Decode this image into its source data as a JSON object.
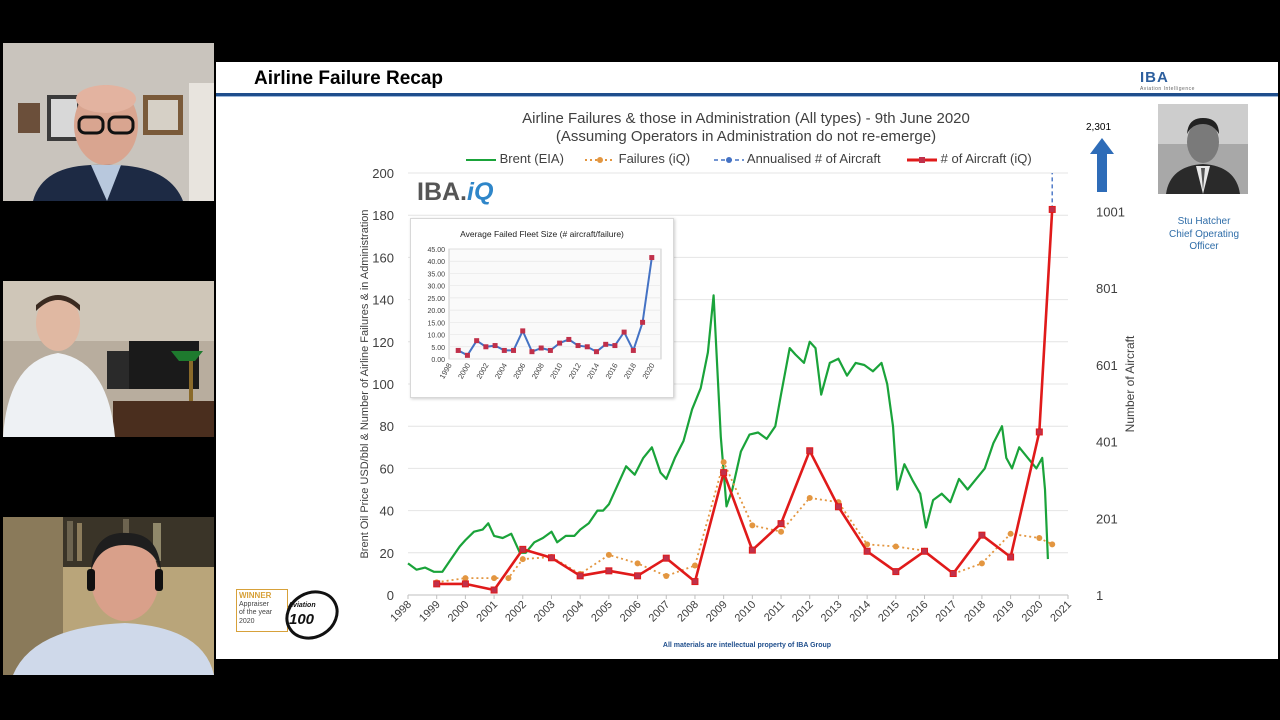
{
  "slide": {
    "title": "Airline Failure Recap",
    "logo": "IBA",
    "logo_sub": "Aviation Intelligence",
    "chart_title_line1": "Airline Failures & those in Administration (All types) - 9th June 2020",
    "chart_title_line2": "(Assuming Operators in Administration do not re-emerge)",
    "brand_mark": "IBA.",
    "brand_mark_iq": "iQ",
    "arrow_value": "2,301",
    "speaker": {
      "name": "Stu Hatcher",
      "role_line1": "Chief Operating",
      "role_line2": "Officer"
    },
    "badge": {
      "line1": "WINNER",
      "line2": "Appraiser",
      "line3": "of the year",
      "line4": "2020",
      "aviation": "Aviation",
      "hundred": "100"
    },
    "footer": "All materials are intellectual property of IBA Group"
  },
  "colors": {
    "brent": "#1aa33a",
    "failures": "#e39640",
    "annualised": "#4472c4",
    "aircraft": "#e01a1a",
    "inset_line": "#4472c4",
    "inset_marker": "#c0304a",
    "accent_blue": "#2f6da8"
  },
  "chart_data": {
    "type": "line",
    "legend": [
      "Brent (EIA)",
      "Failures (iQ)",
      "Annualised # of Aircraft",
      "# of Aircraft (iQ)"
    ],
    "ylabel_left": "Brent Oil Price USD/bbl & Number of Airline Failures & in Administration",
    "ylabel_right": "Number of Aircraft",
    "x_ticks": [
      "1998",
      "1999",
      "2000",
      "2001",
      "2002",
      "2003",
      "2004",
      "2005",
      "2006",
      "2007",
      "2008",
      "2009",
      "2010",
      "2011",
      "2012",
      "2013",
      "2014",
      "2015",
      "2016",
      "2017",
      "2018",
      "2019",
      "2020",
      "2021"
    ],
    "y_left_ticks": [
      "0",
      "20",
      "40",
      "60",
      "80",
      "100",
      "120",
      "140",
      "160",
      "180",
      "200"
    ],
    "y_right_ticks": [
      "1",
      "201",
      "401",
      "601",
      "801",
      "1001"
    ],
    "ylim_left": [
      0,
      200
    ],
    "ylim_right": [
      1,
      1101
    ],
    "xlim": [
      1998,
      2021
    ],
    "series": [
      {
        "name": "Brent (EIA)",
        "axis": "left",
        "x": [
          1998,
          1998.3,
          1998.6,
          1998.9,
          1999.2,
          1999.5,
          1999.8,
          2000.0,
          2000.3,
          2000.6,
          2000.8,
          2001.0,
          2001.3,
          2001.6,
          2001.9,
          2002.1,
          2002.4,
          2002.7,
          2003.0,
          2003.2,
          2003.5,
          2003.8,
          2004.0,
          2004.3,
          2004.6,
          2004.8,
          2005.0,
          2005.3,
          2005.6,
          2005.9,
          2006.2,
          2006.5,
          2006.8,
          2007.0,
          2007.3,
          2007.6,
          2007.9,
          2008.2,
          2008.45,
          2008.65,
          2008.9,
          2009.1,
          2009.3,
          2009.6,
          2009.9,
          2010.2,
          2010.5,
          2010.8,
          2011.0,
          2011.3,
          2011.5,
          2011.8,
          2012.0,
          2012.2,
          2012.4,
          2012.7,
          2013.0,
          2013.3,
          2013.6,
          2013.9,
          2014.2,
          2014.5,
          2014.7,
          2014.9,
          2015.05,
          2015.3,
          2015.6,
          2015.85,
          2016.05,
          2016.3,
          2016.6,
          2016.9,
          2017.2,
          2017.5,
          2017.8,
          2018.1,
          2018.4,
          2018.7,
          2018.85,
          2019.05,
          2019.3,
          2019.6,
          2019.9,
          2020.1,
          2020.2,
          2020.3
        ],
        "values": [
          15,
          12,
          13,
          11,
          11,
          17,
          23,
          26,
          30,
          31,
          34,
          28,
          27,
          29,
          20,
          20,
          25,
          27,
          30,
          25,
          28,
          28,
          31,
          34,
          40,
          40,
          43,
          52,
          61,
          57,
          65,
          70,
          58,
          55,
          65,
          73,
          88,
          98,
          115,
          142,
          75,
          42,
          50,
          68,
          76,
          77,
          74,
          80,
          95,
          117,
          114,
          110,
          120,
          117,
          95,
          110,
          112,
          104,
          110,
          109,
          106,
          110,
          100,
          80,
          50,
          62,
          54,
          48,
          32,
          45,
          48,
          44,
          55,
          50,
          55,
          60,
          72,
          80,
          65,
          60,
          70,
          65,
          60,
          65,
          50,
          17
        ]
      },
      {
        "name": "Failures (iQ)",
        "axis": "left",
        "x": [
          1999,
          2000,
          2001,
          2001.5,
          2002,
          2003,
          2004,
          2005,
          2006,
          2007,
          2008,
          2009,
          2010,
          2011,
          2012,
          2013,
          2014,
          2015,
          2016,
          2017,
          2018,
          2019,
          2020,
          2020.45
        ],
        "values": [
          6,
          8,
          8,
          8,
          17,
          18,
          10,
          19,
          15,
          9,
          14,
          63,
          33,
          30,
          46,
          44,
          24,
          23,
          21,
          10,
          15,
          29,
          27,
          24
        ]
      },
      {
        "name": "Annualised # of Aircraft",
        "axis": "right",
        "x": [
          2020.45,
          2020.45
        ],
        "values": [
          1006,
          1101
        ]
      },
      {
        "name": "# of Aircraft (iQ)",
        "axis": "right",
        "x": [
          1999,
          2000,
          2001,
          2002,
          2003,
          2004,
          2005,
          2006,
          2007,
          2008,
          2009,
          2010,
          2011,
          2012,
          2013,
          2014,
          2015,
          2016,
          2017,
          2018,
          2019,
          2020,
          2020.45
        ],
        "values": [
          30,
          30,
          14,
          120,
          98,
          51,
          64,
          51,
          97,
          36,
          320,
          118,
          187,
          377,
          231,
          115,
          62,
          115,
          57,
          157,
          100,
          426,
          1006
        ]
      }
    ],
    "inset": {
      "type": "line",
      "title": "Average Failed Fleet Size (# aircraft/failure)",
      "x_ticks": [
        "1998",
        "2000",
        "2002",
        "2004",
        "2006",
        "2008",
        "2010",
        "2012",
        "2014",
        "2016",
        "2018",
        "2020"
      ],
      "y_ticks": [
        "0.00",
        "5.00",
        "10.00",
        "15.00",
        "20.00",
        "25.00",
        "30.00",
        "35.00",
        "40.00",
        "45.00"
      ],
      "ylim": [
        0,
        45
      ],
      "x": [
        1999,
        2000,
        2001,
        2002,
        2003,
        2004,
        2005,
        2006,
        2007,
        2008,
        2009,
        2010,
        2011,
        2012,
        2013,
        2014,
        2015,
        2016,
        2017,
        2018,
        2019,
        2020
      ],
      "values": [
        3.5,
        1.5,
        7.5,
        5.0,
        5.5,
        3.5,
        3.5,
        11.5,
        3.0,
        4.5,
        3.5,
        6.5,
        8.0,
        5.5,
        5.0,
        3.0,
        6.0,
        5.5,
        11.0,
        3.5,
        15.0,
        41.5
      ]
    }
  }
}
